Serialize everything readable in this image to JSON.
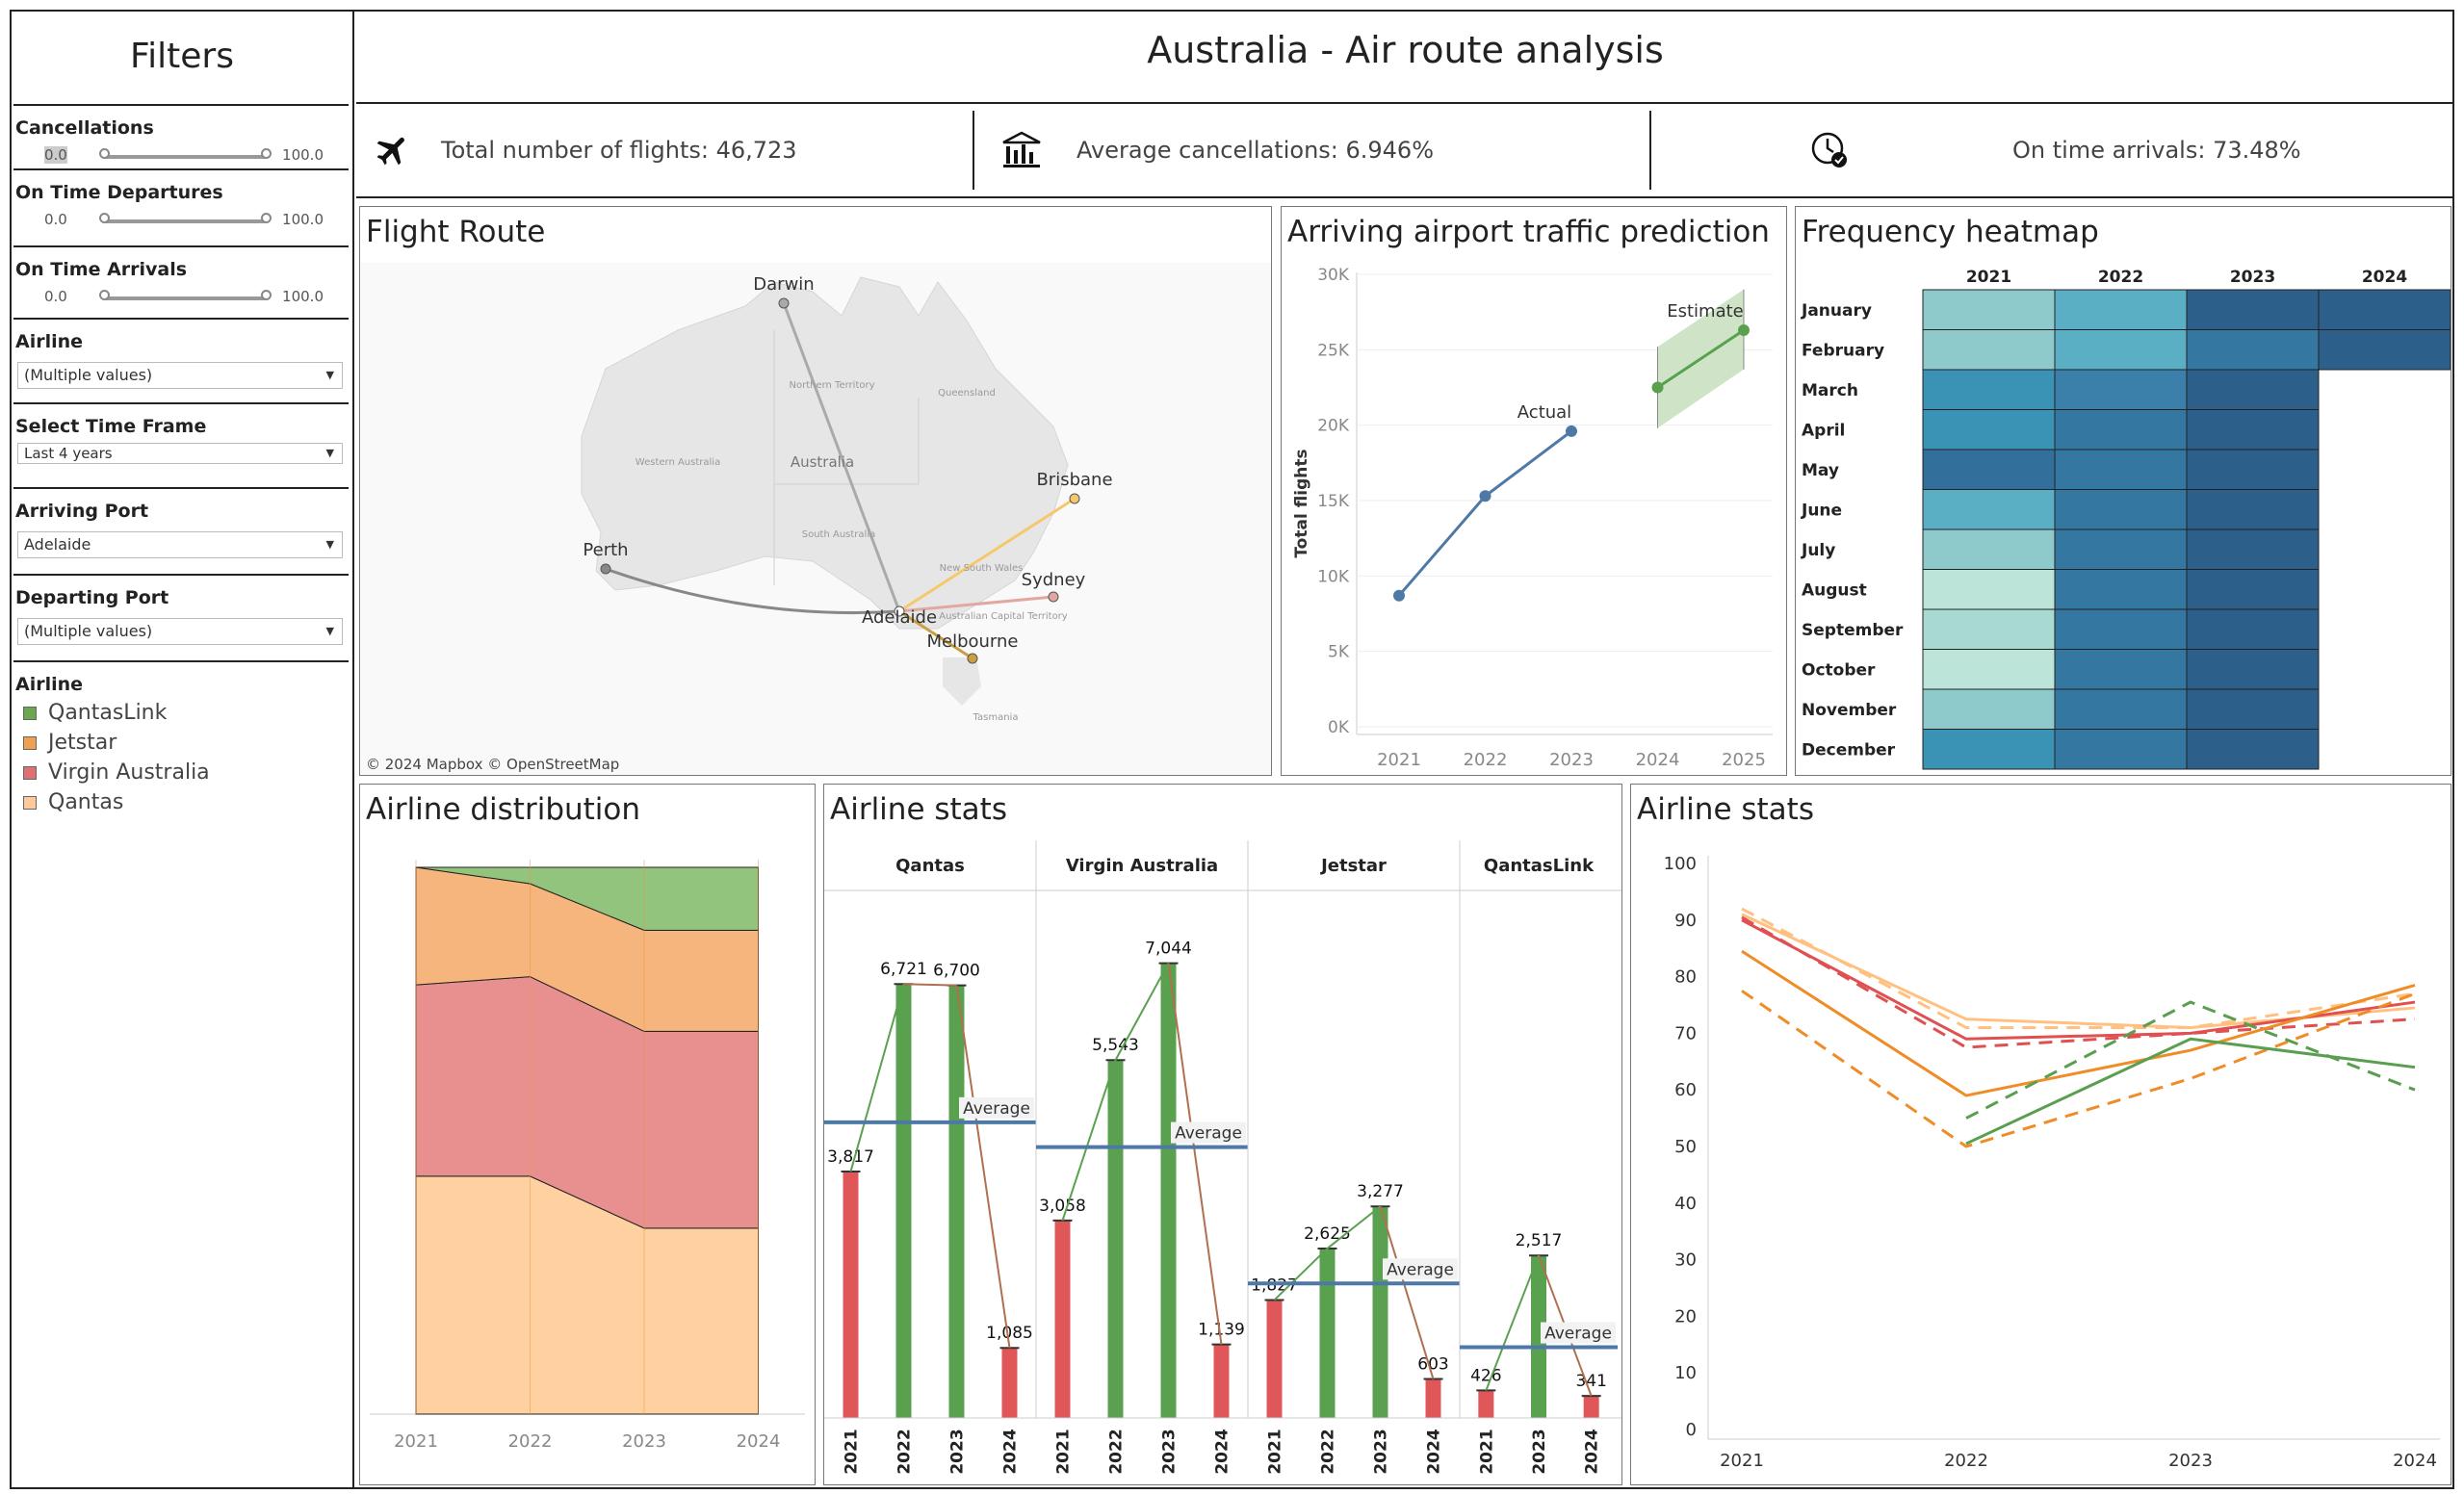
{
  "sidebar": {
    "title": "Filters",
    "cancellations": {
      "label": "Cancellations",
      "min": "0.0",
      "max": "100.0"
    },
    "on_time_departures": {
      "label": "On Time Departures",
      "min": "0.0",
      "max": "100.0"
    },
    "on_time_arrivals": {
      "label": "On Time Arrivals",
      "min": "0.0",
      "max": "100.0"
    },
    "airline_filter": {
      "label": "Airline",
      "value": "(Multiple values)"
    },
    "time_frame": {
      "label": "Select Time Frame",
      "value": "Last 4 years"
    },
    "arriving_port": {
      "label": "Arriving Port",
      "value": "Adelaide"
    },
    "departing_port": {
      "label": "Departing Port",
      "value": "(Multiple values)"
    },
    "legend": {
      "label": "Airline",
      "items": [
        {
          "name": "QantasLink",
          "color": "#6aa84f"
        },
        {
          "name": "Jetstar",
          "color": "#f0a050"
        },
        {
          "name": "Virgin Australia",
          "color": "#e07070"
        },
        {
          "name": "Qantas",
          "color": "#ffc999"
        }
      ]
    }
  },
  "header": {
    "title": "Australia - Air route analysis",
    "kpi_flights": "Total number of flights: 46,723",
    "kpi_cancellations": "Average cancellations:  6.946%",
    "kpi_arrivals": "On time arrivals: 73.48%"
  },
  "map": {
    "title": "Flight Route",
    "attribution": "© 2024 Mapbox © OpenStreetMap",
    "cities": [
      "Darwin",
      "Perth",
      "Brisbane",
      "Sydney",
      "Adelaide",
      "Melbourne"
    ],
    "regions": [
      "Northern Territory",
      "Queensland",
      "Western Australia",
      "Australia",
      "South Australia",
      "New South Wales",
      "Australian Capital Territory",
      "Tasmania"
    ]
  },
  "chart_data": [
    {
      "id": "prediction",
      "type": "line",
      "title": "Arriving airport traffic prediction",
      "ylabel": "Total flights",
      "x": [
        "2021",
        "2022",
        "2023",
        "2024",
        "2025"
      ],
      "ylim": [
        0,
        30000
      ],
      "yticks": [
        "0K",
        "5K",
        "10K",
        "15K",
        "20K",
        "25K",
        "30K"
      ],
      "series": [
        {
          "name": "Actual",
          "x": [
            "2021",
            "2022",
            "2023"
          ],
          "values": [
            8700,
            15300,
            19600
          ],
          "color": "#4e79a7"
        },
        {
          "name": "Estimate",
          "x": [
            "2024",
            "2025"
          ],
          "values": [
            22500,
            26300
          ],
          "lower": [
            19800,
            23700
          ],
          "upper": [
            25200,
            29000
          ],
          "color": "#59a14f"
        }
      ]
    },
    {
      "id": "heatmap",
      "type": "heatmap",
      "title": "Frequency heatmap",
      "columns": [
        "2021",
        "2022",
        "2023",
        "2024"
      ],
      "rows": [
        "January",
        "February",
        "March",
        "April",
        "May",
        "June",
        "July",
        "August",
        "September",
        "October",
        "November",
        "December"
      ],
      "colors": [
        [
          "#8ecacc",
          "#5aafc4",
          "#2c5f8a",
          "#2c5f8a"
        ],
        [
          "#8ecacc",
          "#5aafc4",
          "#3477a0",
          "#2c5f8a"
        ],
        [
          "#3a92b4",
          "#3a80aa",
          "#2c5f8a",
          ""
        ],
        [
          "#3a92b4",
          "#3477a0",
          "#2c5f8a",
          ""
        ],
        [
          "#326f9a",
          "#3477a0",
          "#2c5f8a",
          ""
        ],
        [
          "#5aafc4",
          "#3477a0",
          "#2c5f8a",
          ""
        ],
        [
          "#8ecacc",
          "#3477a0",
          "#2c5f8a",
          ""
        ],
        [
          "#bde4d8",
          "#3477a0",
          "#2c5f8a",
          ""
        ],
        [
          "#a8dad2",
          "#3477a0",
          "#2c5f8a",
          ""
        ],
        [
          "#bde4d8",
          "#3477a0",
          "#2c5f8a",
          ""
        ],
        [
          "#8ecacc",
          "#3477a0",
          "#2c5f8a",
          ""
        ],
        [
          "#3a92b4",
          "#3477a0",
          "#2c5f8a",
          ""
        ]
      ]
    },
    {
      "id": "distribution",
      "type": "area",
      "title": "Airline distribution",
      "x": [
        "2021",
        "2022",
        "2023",
        "2024"
      ],
      "ylim": [
        0,
        100
      ],
      "series": [
        {
          "name": "Qantas",
          "values": [
            43.5,
            43.5,
            34.0,
            34.0
          ],
          "color": "#ffd0a0"
        },
        {
          "name": "Virgin Australia",
          "values": [
            35.0,
            36.5,
            36.0,
            36.0
          ],
          "color": "#e88f8f"
        },
        {
          "name": "Jetstar",
          "values": [
            21.5,
            17.0,
            18.5,
            18.5
          ],
          "color": "#f5b57c"
        },
        {
          "name": "QantasLink",
          "values": [
            0,
            3.0,
            11.5,
            11.5
          ],
          "color": "#93c47d"
        }
      ]
    },
    {
      "id": "airline_bars",
      "type": "bar",
      "title": "Airline stats",
      "categories": [
        "2021",
        "2022",
        "2023",
        "2024"
      ],
      "average_label": "Average",
      "panels": [
        {
          "name": "Qantas",
          "values": [
            3817,
            6721,
            6700,
            1085
          ],
          "labels": [
            "3,817",
            "6,721",
            "6,700",
            "1,085"
          ],
          "average": 4580
        },
        {
          "name": "Virgin Australia",
          "values": [
            3058,
            5543,
            7044,
            1139
          ],
          "labels": [
            "3,058",
            "5,543",
            "7,044",
            "1,139"
          ],
          "average": 4196
        },
        {
          "name": "Jetstar",
          "values": [
            1827,
            2625,
            3277,
            603
          ],
          "labels": [
            "1,827",
            "2,625",
            "3,277",
            "603"
          ],
          "average": 2083
        },
        {
          "name": "QantasLink",
          "values": [
            426,
            2517,
            341
          ],
          "labels": [
            "426",
            "2,517",
            "341"
          ],
          "years": [
            "2021",
            "2023",
            "2024"
          ],
          "average": 1095
        }
      ],
      "ylim": [
        0,
        7500
      ]
    },
    {
      "id": "airline_lines",
      "type": "line",
      "title": "Airline stats",
      "x": [
        "2021",
        "2022",
        "2023",
        "2024"
      ],
      "ylim": [
        0,
        100
      ],
      "yticks": [
        "0",
        "10",
        "20",
        "30",
        "40",
        "50",
        "60",
        "70",
        "80",
        "90",
        "100"
      ],
      "series": [
        {
          "values": [
            91,
            72.5,
            71,
            74.5
          ],
          "color": "#ffc080",
          "dash": false
        },
        {
          "values": [
            92,
            71,
            71,
            77
          ],
          "color": "#ffc080",
          "dash": true
        },
        {
          "values": [
            90,
            69,
            70,
            75.5
          ],
          "color": "#e05050",
          "dash": false
        },
        {
          "values": [
            90.5,
            67.5,
            70,
            72.5
          ],
          "color": "#e05050",
          "dash": true
        },
        {
          "values": [
            84.5,
            59,
            67,
            78.5
          ],
          "color": "#f08c28",
          "dash": false
        },
        {
          "values": [
            77.5,
            50,
            62,
            77
          ],
          "color": "#f08c28",
          "dash": true
        },
        {
          "values": [
            null,
            50.5,
            69,
            64
          ],
          "color": "#5a9e4f",
          "dash": false
        },
        {
          "values": [
            null,
            55,
            75.5,
            60
          ],
          "color": "#5a9e4f",
          "dash": true
        }
      ]
    }
  ]
}
